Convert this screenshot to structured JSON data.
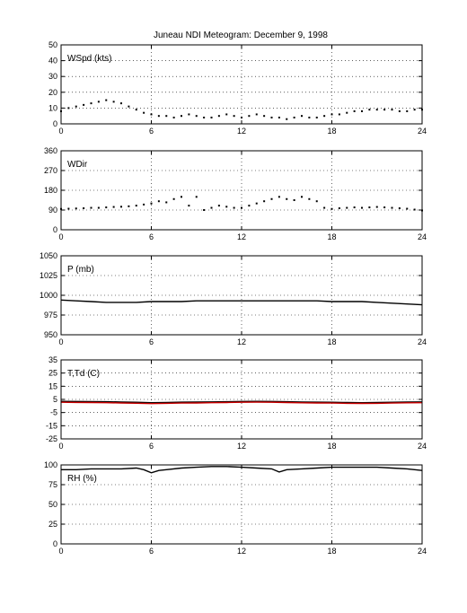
{
  "figure": {
    "title": "Juneau NDI Meteogram:  December  9, 1998"
  },
  "chart_data": [
    {
      "id": "wspd",
      "type": "scatter",
      "label": "WSpd (kts)",
      "xlim": [
        0,
        24
      ],
      "ylim": [
        0,
        50
      ],
      "xticks": [
        0,
        6,
        12,
        18,
        24
      ],
      "yticks": [
        0,
        10,
        20,
        30,
        40,
        50
      ],
      "grid": true,
      "series": [
        {
          "color": "#000000",
          "x": [
            0,
            0.5,
            1,
            1.5,
            2,
            2.5,
            3,
            3.5,
            4,
            4.5,
            5,
            5.5,
            6,
            6.5,
            7,
            7.5,
            8,
            8.5,
            9,
            9.5,
            10,
            10.5,
            11,
            11.5,
            12,
            12.5,
            13,
            13.5,
            14,
            14.5,
            15,
            15.5,
            16,
            16.5,
            17,
            17.5,
            18,
            18.5,
            19,
            19.5,
            20,
            20.5,
            21,
            21.5,
            22,
            22.5,
            23,
            23.5,
            24
          ],
          "y": [
            8,
            10,
            11,
            12,
            13,
            14,
            15,
            14,
            13,
            11,
            9,
            7,
            6,
            5,
            5,
            4,
            5,
            6,
            5,
            4,
            4,
            5,
            6,
            5,
            4,
            5,
            6,
            5,
            4,
            4,
            3,
            4,
            5,
            4,
            4,
            5,
            6,
            6,
            7,
            8,
            8,
            9,
            9,
            9,
            9,
            8,
            8,
            9,
            9
          ]
        }
      ]
    },
    {
      "id": "wdir",
      "type": "scatter",
      "label": "WDir",
      "xlim": [
        0,
        24
      ],
      "ylim": [
        0,
        360
      ],
      "xticks": [
        0,
        6,
        12,
        18,
        24
      ],
      "yticks": [
        0,
        90,
        180,
        270,
        360
      ],
      "grid": true,
      "series": [
        {
          "color": "#000000",
          "x": [
            0,
            0.5,
            1,
            1.5,
            2,
            2.5,
            3,
            3.5,
            4,
            4.5,
            5,
            5.5,
            6,
            6.5,
            7,
            7.5,
            8,
            8.5,
            9,
            9.5,
            10,
            10.5,
            11,
            11.5,
            12,
            12.5,
            13,
            13.5,
            14,
            14.5,
            15,
            15.5,
            16,
            16.5,
            17,
            17.5,
            18,
            18.5,
            19,
            19.5,
            20,
            20.5,
            21,
            21.5,
            22,
            22.5,
            23,
            23.5,
            24
          ],
          "y": [
            95,
            96,
            97,
            98,
            100,
            100,
            102,
            104,
            105,
            107,
            110,
            115,
            120,
            130,
            125,
            140,
            150,
            110,
            150,
            90,
            100,
            110,
            105,
            100,
            100,
            110,
            120,
            130,
            140,
            150,
            140,
            135,
            150,
            140,
            130,
            100,
            95,
            98,
            100,
            102,
            100,
            102,
            104,
            102,
            100,
            98,
            96,
            92,
            88
          ]
        }
      ]
    },
    {
      "id": "pres",
      "type": "line",
      "label": "P (mb)",
      "xlim": [
        0,
        24
      ],
      "ylim": [
        950,
        1050
      ],
      "xticks": [
        0,
        6,
        12,
        18,
        24
      ],
      "yticks": [
        950,
        975,
        1000,
        1025,
        1050
      ],
      "grid": true,
      "series": [
        {
          "color": "#000000",
          "x": [
            0,
            1,
            2,
            3,
            4,
            5,
            6,
            7,
            8,
            9,
            10,
            11,
            12,
            13,
            14,
            15,
            16,
            17,
            18,
            19,
            20,
            21,
            22,
            23,
            24
          ],
          "y": [
            994,
            993,
            992,
            991,
            991,
            991,
            992,
            992,
            992,
            993,
            993,
            993,
            993,
            993,
            993,
            993,
            993,
            993,
            992,
            992,
            992,
            991,
            990,
            989,
            988
          ]
        }
      ]
    },
    {
      "id": "ttd",
      "type": "line",
      "label": "T,Td (C)",
      "xlim": [
        0,
        24
      ],
      "ylim": [
        -25,
        35
      ],
      "xticks": [
        0,
        6,
        12,
        18,
        24
      ],
      "yticks": [
        -25,
        -15,
        -5,
        5,
        15,
        25,
        35
      ],
      "grid": true,
      "series": [
        {
          "color": "#000000",
          "x": [
            0,
            1,
            2,
            3,
            4,
            5,
            6,
            7,
            8,
            9,
            10,
            11,
            12,
            13,
            14,
            15,
            16,
            17,
            18,
            19,
            20,
            21,
            22,
            23,
            24
          ],
          "y": [
            3.5,
            3.4,
            3.3,
            3.2,
            3.0,
            2.8,
            2.5,
            2.7,
            2.9,
            3.0,
            3.1,
            3.2,
            3.4,
            3.5,
            3.4,
            3.2,
            3.0,
            2.9,
            2.8,
            2.6,
            2.5,
            2.6,
            2.8,
            3.0,
            3.1
          ]
        },
        {
          "color": "#cc0000",
          "x": [
            0,
            1,
            2,
            3,
            4,
            5,
            6,
            7,
            8,
            9,
            10,
            11,
            12,
            13,
            14,
            15,
            16,
            17,
            18,
            19,
            20,
            21,
            22,
            23,
            24
          ],
          "y": [
            2.8,
            2.7,
            2.6,
            2.5,
            2.3,
            2.1,
            1.8,
            2.0,
            2.2,
            2.3,
            2.5,
            2.6,
            2.8,
            2.9,
            2.8,
            2.6,
            2.4,
            2.3,
            2.2,
            2.0,
            1.9,
            2.0,
            2.2,
            2.4,
            2.5
          ]
        }
      ]
    },
    {
      "id": "rh",
      "type": "line",
      "label": "RH (%)",
      "xlim": [
        0,
        24
      ],
      "ylim": [
        0,
        100
      ],
      "xticks": [
        0,
        6,
        12,
        18,
        24
      ],
      "yticks": [
        0,
        25,
        50,
        75,
        100
      ],
      "grid": true,
      "series": [
        {
          "color": "#000000",
          "x": [
            0,
            1,
            2,
            3,
            4,
            5,
            5.5,
            6,
            6.5,
            7,
            8,
            9,
            10,
            11,
            12,
            13,
            14,
            14.5,
            15,
            16,
            17,
            18,
            19,
            20,
            21,
            22,
            23,
            24
          ],
          "y": [
            94,
            94,
            95,
            95,
            95,
            96,
            94,
            90,
            93,
            94,
            96,
            97,
            98,
            98,
            97,
            96,
            95,
            91,
            94,
            95,
            96,
            97,
            97,
            97,
            97,
            96,
            95,
            93
          ]
        }
      ]
    }
  ]
}
